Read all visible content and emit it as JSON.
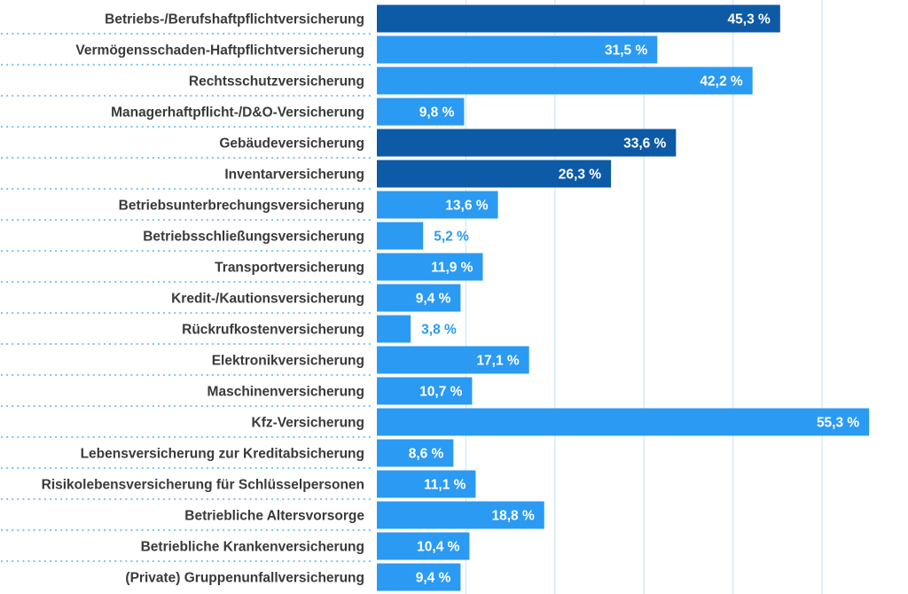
{
  "chart_data": {
    "type": "bar",
    "orientation": "horizontal",
    "categories": [
      "Betriebs-/Berufshaftpflichtversicherung",
      "Vermögensschaden-Haftpflichtversicherung",
      "Rechtsschutzversicherung",
      "Managerhaftpflicht-/D&O-Versicherung",
      "Gebäudeversicherung",
      "Inventarversicherung",
      "Betriebsunterbrechungsversicherung",
      "Betriebsschließungsversicherung",
      "Transportversicherung",
      "Kredit-/Kautionsversicherung",
      "Rückrufkostenversicherung",
      "Elektronikversicherung",
      "Maschinenversicherung",
      "Kfz-Versicherung",
      "Lebensversicherung zur Kreditabsicherung",
      "Risikolebensversicherung für Schlüsselpersonen",
      "Betriebliche Altersvorsorge",
      "Betriebliche Krankenversicherung",
      "(Private) Gruppenunfallversicherung"
    ],
    "values": [
      45.3,
      31.5,
      42.2,
      9.8,
      33.6,
      26.3,
      13.6,
      5.2,
      11.9,
      9.4,
      3.8,
      17.1,
      10.7,
      55.3,
      8.6,
      11.1,
      18.8,
      10.4,
      9.4
    ],
    "value_labels": [
      "45,3 %",
      "31,5 %",
      "42,2 %",
      "9,8 %",
      "33,6 %",
      "26,3 %",
      "13,6 %",
      "5,2 %",
      "11,9 %",
      "9,4 %",
      "3,8 %",
      "17,1 %",
      "10,7 %",
      "55,3 %",
      "8,6 %",
      "11,1 %",
      "18,8 %",
      "10,4 %",
      "9,4 %"
    ],
    "highlighted": [
      true,
      false,
      false,
      false,
      true,
      true,
      false,
      false,
      false,
      false,
      false,
      false,
      false,
      false,
      false,
      false,
      false,
      false,
      false
    ],
    "xlim": [
      0,
      60
    ],
    "gridlines_at": [
      10,
      20,
      30,
      40,
      50
    ],
    "grid": true,
    "legend": "none",
    "colors": {
      "bar": "#2b9af3",
      "bar_highlight": "#0d5aa7",
      "label_inside": "#ffffff",
      "label_outside": "#2b9af3",
      "category_text": "#3a3a3a",
      "separator_dots": "#7fc4ea",
      "gridline": "#cfe6f6"
    }
  }
}
